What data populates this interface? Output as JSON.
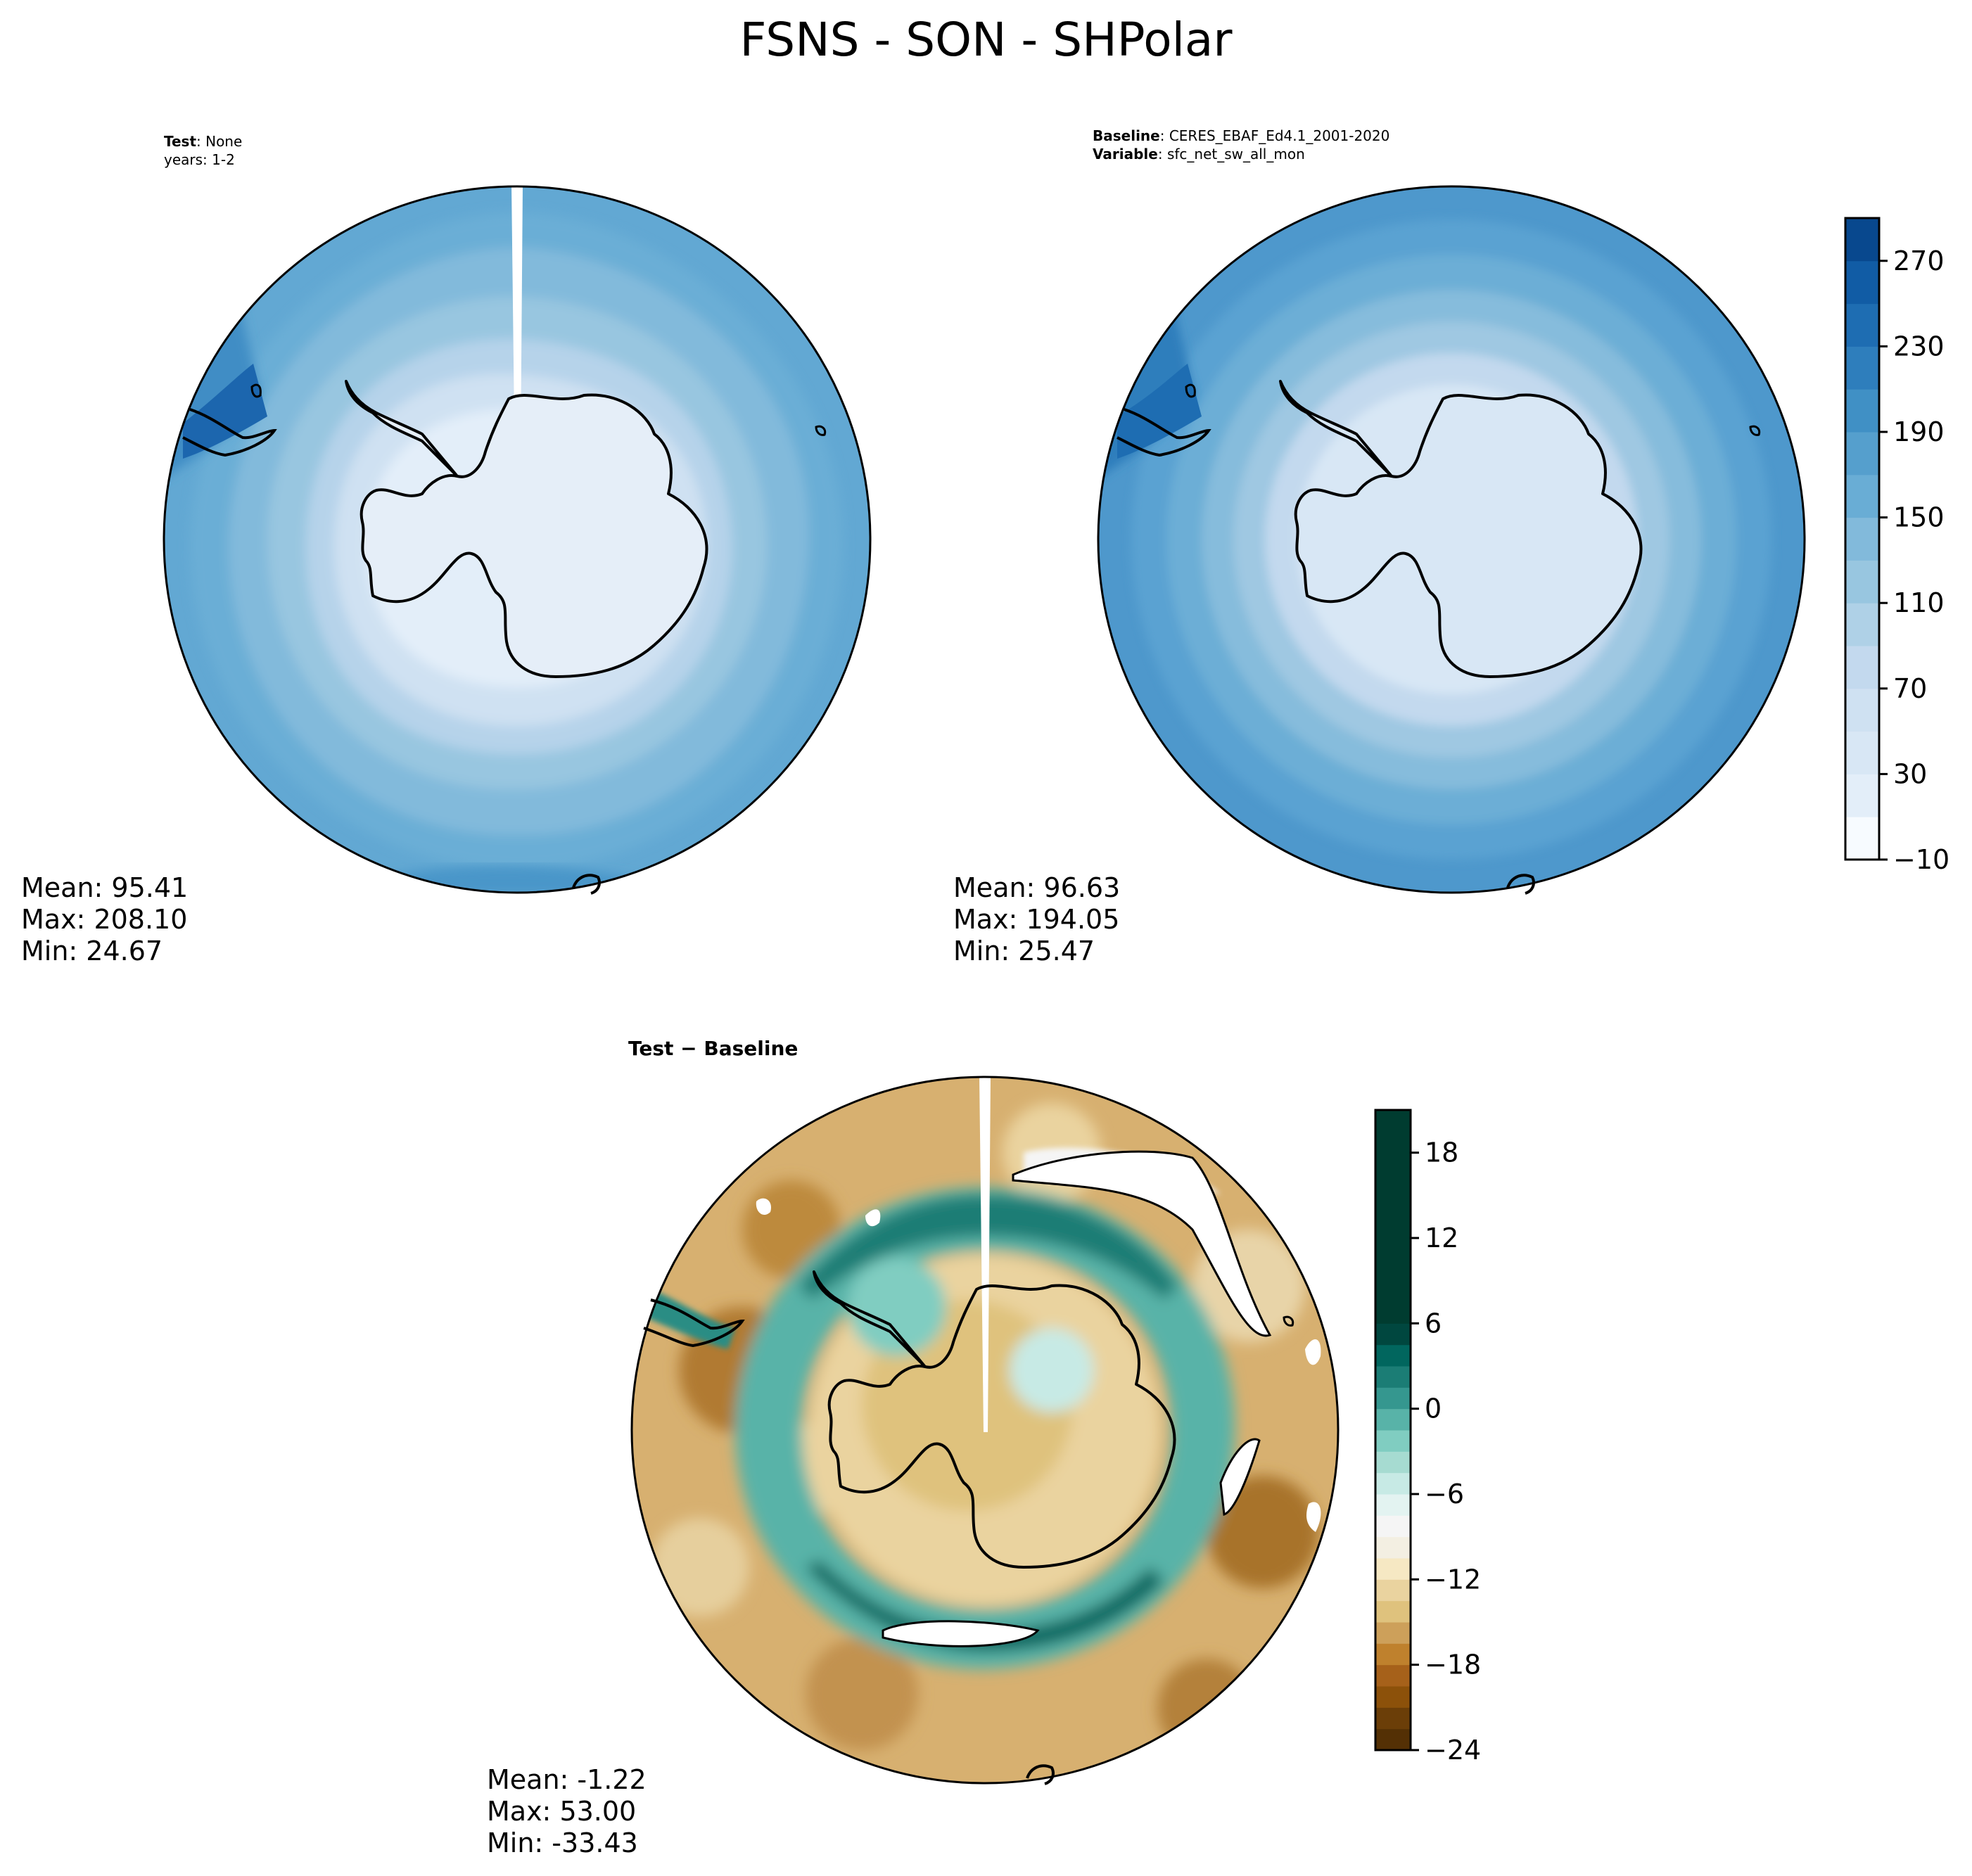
{
  "title": "FSNS - SON - SHPolar",
  "panels": {
    "test": {
      "line1_bold": "Test",
      "line1_rest": ": None",
      "line2": "years: 1-2",
      "stats": {
        "mean": "Mean: 95.41",
        "max": "Max: 208.10",
        "min": "Min: 24.67"
      }
    },
    "baseline": {
      "line1_bold": "Baseline",
      "line1_rest": ": CERES_EBAF_Ed4.1_2001-2020",
      "line2_bold": "Variable",
      "line2_rest": ": sfc_net_sw_all_mon",
      "stats": {
        "mean": "Mean: 96.63",
        "max": "Max: 194.05",
        "min": "Min: 25.47"
      }
    },
    "diff": {
      "title": "Test − Baseline",
      "stats": {
        "mean": "Mean: -1.22",
        "max": "Max: 53.00",
        "min": "Min: -33.43"
      }
    }
  },
  "chart_data": [
    {
      "type": "heatmap",
      "panel": "test",
      "projection": "south-polar-stereographic",
      "stats": {
        "mean": 95.41,
        "max": 208.1,
        "min": 24.67
      },
      "colorbar": {
        "levels": [
          -10,
          10,
          30,
          50,
          70,
          90,
          110,
          130,
          150,
          170,
          190,
          210,
          230,
          250,
          270,
          290
        ],
        "tick_values": [
          -10,
          30,
          70,
          110,
          150,
          190,
          230,
          270
        ],
        "tick_labels": [
          "−10",
          "30",
          "70",
          "110",
          "150",
          "190",
          "230",
          "270"
        ],
        "colors": [
          "#f7fbff",
          "#e3eef9",
          "#d8e7f5",
          "#cfe1f2",
          "#c3d9ee",
          "#afd1e7",
          "#98c6e0",
          "#82badb",
          "#69add5",
          "#559fcd",
          "#4090c5",
          "#2e7ebc",
          "#1e6db2",
          "#115ca5",
          "#08488e"
        ]
      }
    },
    {
      "type": "heatmap",
      "panel": "baseline",
      "projection": "south-polar-stereographic",
      "stats": {
        "mean": 96.63,
        "max": 194.05,
        "min": 25.47
      }
    },
    {
      "type": "heatmap",
      "panel": "diff",
      "projection": "south-polar-stereographic",
      "stats": {
        "mean": -1.22,
        "max": 53.0,
        "min": -33.43
      },
      "colorbar": {
        "range": [
          -24,
          21
        ],
        "step": 1.5,
        "tick_values": [
          -24,
          -18,
          -12,
          -6,
          0,
          6,
          12,
          18
        ],
        "tick_labels": [
          "−24",
          "−18",
          "−12",
          "−6",
          "0",
          "6",
          "12",
          "18"
        ],
        "colors": [
          "#543005",
          "#6b3e08",
          "#8c510a",
          "#a6611a",
          "#bf812d",
          "#cda05a",
          "#dfc27d",
          "#ead39f",
          "#f6e8c3",
          "#f3efe2",
          "#f5f5f5",
          "#e3f3f1",
          "#c7eae5",
          "#a6dbd1",
          "#80cdc1",
          "#58b3a8",
          "#35978f",
          "#1b7d75",
          "#01665e",
          "#00473f",
          "#003c30"
        ]
      }
    }
  ]
}
